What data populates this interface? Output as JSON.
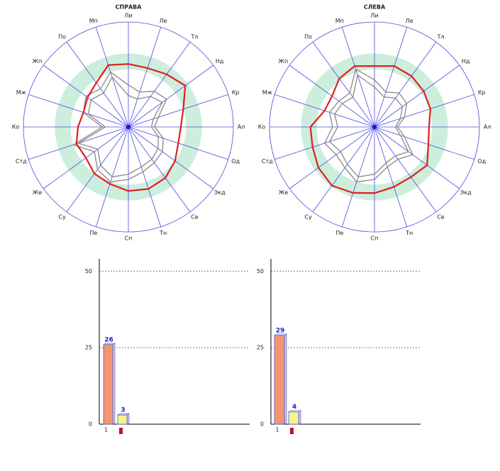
{
  "chart_data": [
    {
      "type": "radar",
      "title": "СПРАВА",
      "categories": [
        "Ли",
        "Ле",
        "Тл",
        "Нд",
        "Кр",
        "Ал",
        "Од",
        "Экд",
        "Се",
        "Тн",
        "Сп",
        "Пе",
        "Су",
        "Же",
        "Стд",
        "Ко",
        "Мж",
        "Жп",
        "По",
        "Мп"
      ],
      "rlim": [
        0,
        100
      ],
      "shaded_band": [
        55,
        70
      ],
      "band_color": "#cdeedd",
      "axis_color": "#4a4ae0",
      "series": [
        {
          "color": "#888888",
          "values": [
            40,
            35,
            42,
            45,
            30,
            25,
            35,
            40,
            42,
            45,
            50,
            55,
            50,
            40,
            55,
            25,
            45,
            50,
            45,
            55
          ]
        },
        {
          "color": "#888888",
          "values": [
            30,
            28,
            36,
            40,
            25,
            22,
            30,
            35,
            38,
            40,
            45,
            50,
            45,
            36,
            50,
            22,
            40,
            44,
            40,
            50
          ]
        },
        {
          "color": "#e02020",
          "values": [
            60,
            59,
            62,
            67,
            55,
            50,
            50,
            55,
            60,
            62,
            61,
            57,
            55,
            50,
            52,
            48,
            45,
            48,
            52,
            62
          ]
        }
      ]
    },
    {
      "type": "radar",
      "title": "СЛЕВА",
      "categories": [
        "Ли",
        "Ле",
        "Тл",
        "Нд",
        "Кр",
        "Ал",
        "Од",
        "Экд",
        "Се",
        "Тн",
        "Сп",
        "Пе",
        "Су",
        "Же",
        "Стд",
        "Ко",
        "Мж",
        "Жп",
        "По",
        "Мп"
      ],
      "rlim": [
        0,
        100
      ],
      "shaded_band": [
        55,
        70
      ],
      "band_color": "#cdeedd",
      "axis_color": "#4a4ae0",
      "series": [
        {
          "color": "#888888",
          "values": [
            45,
            35,
            40,
            38,
            30,
            22,
            30,
            45,
            38,
            40,
            50,
            55,
            48,
            45,
            50,
            40,
            45,
            42,
            40,
            58
          ]
        },
        {
          "color": "#888888",
          "values": [
            38,
            30,
            34,
            33,
            26,
            20,
            26,
            40,
            34,
            36,
            45,
            50,
            44,
            40,
            45,
            35,
            40,
            38,
            35,
            52
          ]
        },
        {
          "color": "#e02020",
          "values": [
            58,
            61,
            60,
            58,
            56,
            52,
            54,
            62,
            59,
            60,
            63,
            66,
            69,
            66,
            62,
            61,
            50,
            50,
            57,
            61
          ]
        }
      ]
    },
    {
      "type": "bar",
      "categories": [
        "1",
        null
      ],
      "values": [
        26,
        3
      ],
      "colors": [
        "#f4956f",
        "#f6f48c"
      ],
      "ylim": [
        0,
        54
      ],
      "yticks": [
        0,
        25,
        50
      ],
      "grid": true
    },
    {
      "type": "bar",
      "categories": [
        "1",
        null
      ],
      "values": [
        29,
        4
      ],
      "colors": [
        "#f4956f",
        "#f6f48c"
      ],
      "ylim": [
        0,
        54
      ],
      "yticks": [
        0,
        25,
        50
      ],
      "grid": true
    }
  ]
}
